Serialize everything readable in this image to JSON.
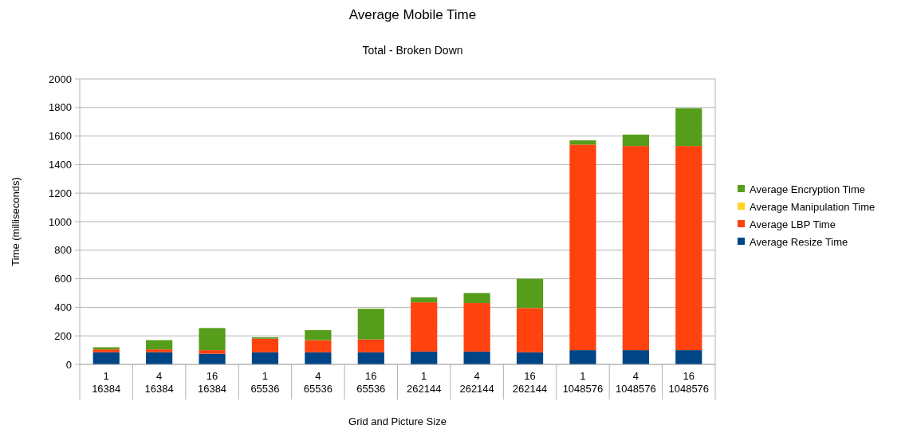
{
  "chart_data": {
    "type": "bar",
    "title": "Average Mobile Time",
    "subtitle": "Total - Broken Down",
    "xlabel": "Grid and Picture Size",
    "ylabel": "Time (milliseconds)",
    "categories": [
      "1\n16384",
      "4\n16384",
      "16\n16384",
      "1\n65536",
      "4\n65536",
      "16\n65536",
      "1\n262144",
      "4\n262144",
      "16\n262144",
      "1\n1048576",
      "4\n1048576",
      "16\n1048576"
    ],
    "stacked": true,
    "ylim": [
      0,
      2000
    ],
    "yticks": [
      0,
      200,
      400,
      600,
      800,
      1000,
      1200,
      1400,
      1600,
      1800,
      2000
    ],
    "grid": "y",
    "legend": "right",
    "series": [
      {
        "name": "Average Resize Time",
        "color": "#004586",
        "values": [
          85,
          85,
          75,
          85,
          85,
          85,
          90,
          90,
          85,
          100,
          100,
          100
        ]
      },
      {
        "name": "Average LBP Time",
        "color": "#ff420e",
        "values": [
          20,
          20,
          25,
          95,
          85,
          90,
          345,
          340,
          310,
          1440,
          1430,
          1430
        ]
      },
      {
        "name": "Average Manipulation Time",
        "color": "#ffd320",
        "values": [
          null,
          null,
          null,
          null,
          null,
          null,
          null,
          null,
          null,
          null,
          null,
          null
        ]
      },
      {
        "name": "Average Encryption Time",
        "color": "#579d1c",
        "values": [
          15,
          65,
          155,
          10,
          70,
          215,
          35,
          70,
          205,
          30,
          80,
          265
        ]
      }
    ]
  }
}
